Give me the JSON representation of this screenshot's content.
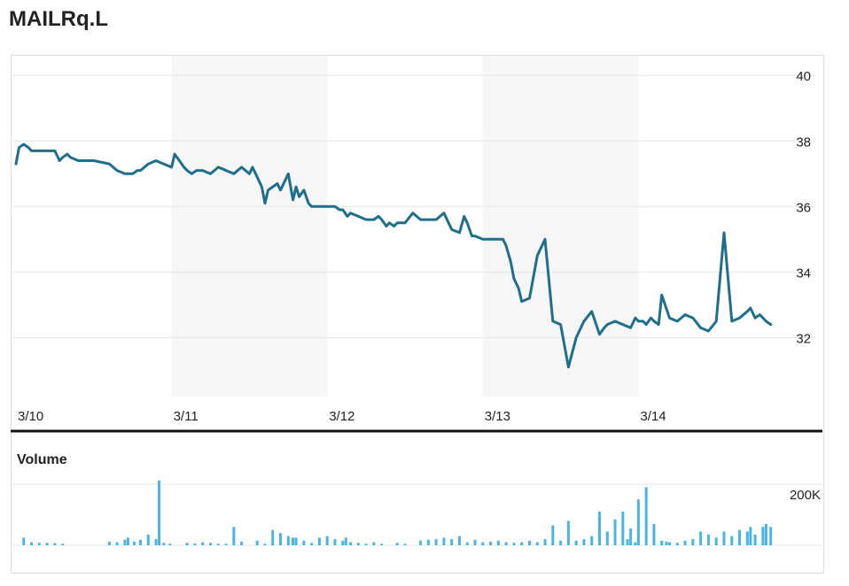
{
  "colors": {
    "price_line": "#1f6f8b",
    "volume_bar": "#4ab4e6",
    "band": "#f6f6f6",
    "grid": "#e6e6e6",
    "text": "#222222",
    "divider": "#111111"
  },
  "chart_data": [
    {
      "type": "line",
      "title": "MAILRq.L",
      "x_tick_labels": [
        "3/10",
        "3/11",
        "3/12",
        "3/13",
        "3/14"
      ],
      "y_ticks": [
        32,
        34,
        36,
        38,
        40
      ],
      "ylim": [
        30.2,
        40.6
      ],
      "xlim": [
        0,
        5
      ],
      "y_axis_side": "right",
      "grid": true,
      "shaded_days": [
        1,
        3
      ],
      "x": [
        0,
        0.02,
        0.05,
        0.08,
        0.1,
        0.14,
        0.2,
        0.25,
        0.28,
        0.3,
        0.33,
        0.35,
        0.4,
        0.5,
        0.6,
        0.65,
        0.7,
        0.75,
        0.78,
        0.8,
        0.85,
        0.9,
        0.95,
        1.0,
        1.02,
        1.05,
        1.08,
        1.1,
        1.13,
        1.16,
        1.2,
        1.25,
        1.3,
        1.35,
        1.4,
        1.45,
        1.5,
        1.52,
        1.55,
        1.58,
        1.6,
        1.62,
        1.65,
        1.68,
        1.7,
        1.73,
        1.75,
        1.78,
        1.8,
        1.82,
        1.85,
        1.88,
        1.9,
        1.93,
        1.95,
        1.98,
        2.0,
        2.03,
        2.05,
        2.08,
        2.1,
        2.13,
        2.15,
        2.2,
        2.25,
        2.3,
        2.33,
        2.35,
        2.38,
        2.4,
        2.43,
        2.45,
        2.5,
        2.55,
        2.6,
        2.65,
        2.7,
        2.75,
        2.8,
        2.85,
        2.88,
        2.9,
        2.93,
        2.95,
        3.0,
        3.03,
        3.05,
        3.08,
        3.1,
        3.13,
        3.15,
        3.18,
        3.2,
        3.23,
        3.25,
        3.3,
        3.35,
        3.4,
        3.45,
        3.5,
        3.55,
        3.6,
        3.65,
        3.7,
        3.75,
        3.78,
        3.8,
        3.85,
        3.9,
        3.95,
        3.97,
        3.98,
        4.0,
        4.03,
        4.05,
        4.08,
        4.1,
        4.13,
        4.15,
        4.2,
        4.25,
        4.3,
        4.35,
        4.4,
        4.45,
        4.5,
        4.55,
        4.6,
        4.65,
        4.7,
        4.72,
        4.75,
        4.78,
        4.8,
        4.82,
        4.85
      ],
      "series": [
        {
          "values": [
            37.3,
            37.8,
            37.9,
            37.8,
            37.7,
            37.7,
            37.7,
            37.7,
            37.4,
            37.5,
            37.6,
            37.5,
            37.4,
            37.4,
            37.3,
            37.1,
            37.0,
            37.0,
            37.1,
            37.1,
            37.3,
            37.4,
            37.3,
            37.2,
            37.6,
            37.4,
            37.2,
            37.1,
            37.0,
            37.1,
            37.1,
            37.0,
            37.2,
            37.1,
            37.0,
            37.2,
            37.0,
            37.2,
            36.9,
            36.6,
            36.1,
            36.5,
            36.6,
            36.7,
            36.5,
            36.8,
            37.0,
            36.2,
            36.6,
            36.3,
            36.5,
            36.1,
            36.0,
            36.0,
            36.0,
            36.0,
            36.0,
            36.0,
            36.0,
            35.9,
            35.9,
            35.7,
            35.8,
            35.7,
            35.6,
            35.6,
            35.7,
            35.6,
            35.4,
            35.5,
            35.4,
            35.5,
            35.5,
            35.8,
            35.6,
            35.6,
            35.6,
            35.8,
            35.3,
            35.2,
            35.7,
            35.5,
            35.1,
            35.1,
            35.0,
            35.0,
            35.0,
            35.0,
            35.0,
            35.0,
            34.8,
            34.3,
            33.8,
            33.5,
            33.1,
            33.2,
            34.5,
            35.0,
            32.5,
            32.4,
            31.1,
            32.0,
            32.5,
            32.8,
            32.1,
            32.3,
            32.4,
            32.5,
            32.4,
            32.3,
            32.5,
            32.6,
            32.5,
            32.5,
            32.4,
            32.6,
            32.5,
            32.4,
            33.3,
            32.6,
            32.5,
            32.7,
            32.6,
            32.3,
            32.2,
            32.5,
            35.2,
            32.5,
            32.6,
            32.8,
            32.9,
            32.6,
            32.7,
            32.6,
            32.5,
            32.4
          ]
        }
      ]
    },
    {
      "type": "bar",
      "title": "Volume",
      "y_tick_labels": [
        "200K"
      ],
      "y_ticks": [
        200000
      ],
      "ylim": [
        0,
        220000
      ],
      "xlim": [
        0,
        5
      ],
      "x": [
        0.05,
        0.1,
        0.15,
        0.2,
        0.25,
        0.3,
        0.6,
        0.65,
        0.7,
        0.72,
        0.76,
        0.8,
        0.85,
        0.9,
        0.92,
        0.95,
        0.99,
        1.1,
        1.15,
        1.2,
        1.25,
        1.3,
        1.35,
        1.4,
        1.45,
        1.55,
        1.6,
        1.65,
        1.7,
        1.75,
        1.78,
        1.8,
        1.85,
        1.9,
        1.95,
        2.0,
        2.05,
        2.1,
        2.12,
        2.15,
        2.2,
        2.25,
        2.3,
        2.35,
        2.45,
        2.5,
        2.6,
        2.65,
        2.7,
        2.75,
        2.8,
        2.85,
        2.9,
        2.95,
        3.0,
        3.05,
        3.1,
        3.15,
        3.2,
        3.25,
        3.3,
        3.35,
        3.4,
        3.45,
        3.5,
        3.55,
        3.6,
        3.65,
        3.7,
        3.75,
        3.8,
        3.85,
        3.9,
        3.93,
        3.95,
        3.98,
        4.0,
        4.05,
        4.1,
        4.15,
        4.18,
        4.2,
        4.25,
        4.3,
        4.35,
        4.4,
        4.45,
        4.5,
        4.55,
        4.6,
        4.65,
        4.7,
        4.72,
        4.75,
        4.8,
        4.82,
        4.85
      ],
      "values": [
        25000,
        10000,
        8000,
        8000,
        7000,
        5000,
        12000,
        10000,
        18000,
        25000,
        12000,
        18000,
        35000,
        20000,
        212000,
        8000,
        5000,
        8000,
        6000,
        10000,
        8000,
        5000,
        5000,
        60000,
        12000,
        15000,
        5000,
        50000,
        40000,
        30000,
        25000,
        25000,
        15000,
        8000,
        25000,
        30000,
        20000,
        15000,
        25000,
        10000,
        8000,
        5000,
        10000,
        5000,
        8000,
        5000,
        15000,
        18000,
        20000,
        25000,
        20000,
        30000,
        10000,
        18000,
        10000,
        12000,
        15000,
        10000,
        8000,
        10000,
        15000,
        10000,
        20000,
        65000,
        15000,
        80000,
        15000,
        20000,
        30000,
        110000,
        45000,
        85000,
        110000,
        20000,
        55000,
        10000,
        150000,
        190000,
        70000,
        15000,
        12000,
        10000,
        8000,
        15000,
        20000,
        45000,
        35000,
        25000,
        45000,
        30000,
        50000,
        45000,
        60000,
        35000,
        60000,
        70000,
        60000
      ]
    }
  ]
}
